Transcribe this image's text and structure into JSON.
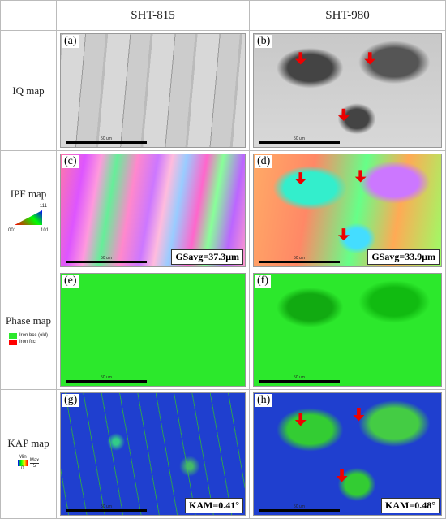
{
  "header": {
    "columns": [
      "SHT-815",
      "SHT-980"
    ]
  },
  "rows": [
    {
      "label": "IQ map",
      "panels": [
        {
          "tag": "(a)",
          "scale": "50 um"
        },
        {
          "tag": "(b)",
          "scale": "50 um"
        }
      ]
    },
    {
      "label": "IPF map",
      "legend": [
        "111",
        "001",
        "101"
      ],
      "panels": [
        {
          "tag": "(c)",
          "scale": "50 um",
          "annotation": "GSavg=37.3μm"
        },
        {
          "tag": "(d)",
          "scale": "50 um",
          "annotation": "GSavg=33.9μm"
        }
      ]
    },
    {
      "label": "Phase map",
      "legend": [
        "Iron bcc (old)",
        "Iron fcc"
      ],
      "panels": [
        {
          "tag": "(e)",
          "scale": "50 um"
        },
        {
          "tag": "(f)",
          "scale": "50 um"
        }
      ]
    },
    {
      "label": "KAP map",
      "legend": [
        "Min",
        "Max",
        "0",
        "5"
      ],
      "panels": [
        {
          "tag": "(g)",
          "scale": "50 um",
          "annotation": "KAM=0.41°"
        },
        {
          "tag": "(h)",
          "scale": "50 um",
          "annotation": "KAM=0.48°"
        }
      ]
    }
  ]
}
